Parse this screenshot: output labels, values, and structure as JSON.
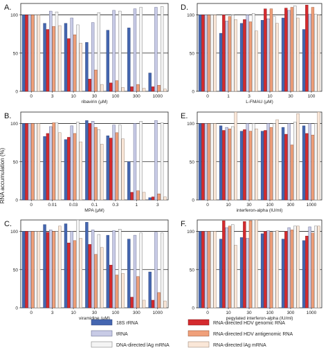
{
  "figure": {
    "ylabel": "RNA accumulation (%)",
    "yticks": [
      0,
      50,
      100
    ],
    "ylim": [
      0,
      115
    ]
  },
  "series": [
    {
      "name": "18S rRNA",
      "color": "#4466b0",
      "stroke": "#2a3f73"
    },
    {
      "name": "RNA-directed HDV genomic RNA",
      "color": "#d42a2e",
      "stroke": "#7a1416"
    },
    {
      "name": "tRNA",
      "color": "#c8cbe6",
      "stroke": "#555a80"
    },
    {
      "name": "RNA-directed HDV antigenomic RNA",
      "color": "#f0a07a",
      "stroke": "#8a4a2c"
    },
    {
      "name": "DNA-directed lAg mRNA",
      "color": "#f4f4f4",
      "stroke": "#6a6a6a"
    },
    {
      "name": "RNA-directed lAg mRNA",
      "color": "#fae7d8",
      "stroke": "#8c7564"
    }
  ],
  "chart_data": [
    {
      "type": "bar",
      "panel_label": "A.",
      "xlabel": "ribavirin (μM)",
      "categories": [
        "0",
        "3",
        "10",
        "30",
        "100",
        "300",
        "1000"
      ],
      "ylim": [
        0,
        115
      ],
      "yticks": [
        0,
        50,
        100
      ],
      "series": [
        {
          "name": "18S rRNA",
          "values": [
            100,
            89,
            89,
            64,
            80,
            83,
            24
          ]
        },
        {
          "name": "RNA-directed HDV genomic RNA",
          "values": [
            100,
            81,
            69,
            16,
            11,
            6,
            6
          ]
        },
        {
          "name": "tRNA",
          "values": [
            100,
            105,
            96,
            90,
            106,
            108,
            110
          ]
        },
        {
          "name": "RNA-directed HDV antigenomic RNA",
          "values": [
            100,
            85,
            74,
            28,
            14,
            9,
            8
          ]
        },
        {
          "name": "DNA-directed lAg mRNA",
          "values": [
            100,
            104,
            87,
            103,
            105,
            110,
            111
          ]
        },
        {
          "name": "RNA-directed lAg mRNA",
          "values": [
            100,
            86,
            63,
            9,
            5,
            4,
            3
          ]
        }
      ]
    },
    {
      "type": "bar",
      "panel_label": "D.",
      "xlabel": "L-FMAU (μM)",
      "categories": [
        "0",
        "1",
        "3",
        "10",
        "30",
        "100"
      ],
      "ylim": [
        0,
        115
      ],
      "yticks": [
        0,
        50,
        100
      ],
      "series": [
        {
          "name": "18S rRNA",
          "values": [
            100,
            76,
            89,
            93,
            96,
            81
          ]
        },
        {
          "name": "RNA-directed HDV genomic RNA",
          "values": [
            100,
            100,
            94,
            108,
            109,
            113
          ]
        },
        {
          "name": "tRNA",
          "values": [
            100,
            92,
            100,
            95,
            106,
            101
          ]
        },
        {
          "name": "RNA-directed HDV antigenomic RNA",
          "values": [
            100,
            98,
            91,
            108,
            110,
            110
          ]
        },
        {
          "name": "DNA-directed lAg mRNA",
          "values": [
            100,
            100,
            102,
            98,
            112,
            101
          ]
        },
        {
          "name": "RNA-directed lAg mRNA",
          "values": [
            100,
            94,
            79,
            89,
            96,
            100
          ]
        }
      ]
    },
    {
      "type": "bar",
      "panel_label": "B.",
      "xlabel": "MPA (μM)",
      "categories": [
        "0",
        "0.01",
        "0.03",
        "0.1",
        "0.3",
        "1",
        "3"
      ],
      "ylim": [
        0,
        115
      ],
      "yticks": [
        0,
        50,
        100
      ],
      "series": [
        {
          "name": "18S rRNA",
          "values": [
            100,
            83,
            79,
            104,
            84,
            50,
            3
          ]
        },
        {
          "name": "RNA-directed HDV genomic RNA",
          "values": [
            100,
            87,
            82,
            100,
            81,
            10,
            4
          ]
        },
        {
          "name": "tRNA",
          "values": [
            100,
            96,
            97,
            103,
            98,
            100,
            104
          ]
        },
        {
          "name": "RNA-directed HDV antigenomic RNA",
          "values": [
            100,
            101,
            87,
            95,
            88,
            12,
            8
          ]
        },
        {
          "name": "DNA-directed lAg mRNA",
          "values": [
            100,
            101,
            102,
            92,
            98,
            103,
            101
          ]
        },
        {
          "name": "RNA-directed lAg mRNA",
          "values": [
            100,
            88,
            76,
            73,
            80,
            10,
            4
          ]
        }
      ]
    },
    {
      "type": "bar",
      "panel_label": "E.",
      "xlabel": "interferon-alpha (IU/ml)",
      "categories": [
        "0",
        "10",
        "30",
        "100",
        "300",
        "1000"
      ],
      "ylim": [
        0,
        115
      ],
      "yticks": [
        0,
        50,
        100
      ],
      "series": [
        {
          "name": "18S rRNA",
          "values": [
            100,
            97,
            90,
            90,
            95,
            97
          ]
        },
        {
          "name": "RNA-directed HDV genomic RNA",
          "values": [
            100,
            91,
            92,
            91,
            86,
            87
          ]
        },
        {
          "name": "tRNA",
          "values": [
            100,
            95,
            100,
            100,
            100,
            100
          ]
        },
        {
          "name": "RNA-directed HDV antigenomic RNA",
          "values": [
            100,
            93,
            90,
            95,
            72,
            85
          ]
        },
        {
          "name": "DNA-directed lAg mRNA",
          "values": [
            100,
            96,
            100,
            100,
            102,
            100
          ]
        },
        {
          "name": "RNA-directed lAg mRNA",
          "values": [
            100,
            117,
            93,
            105,
            113,
            117
          ]
        }
      ]
    },
    {
      "type": "bar",
      "panel_label": "C.",
      "xlabel": "viramidine (μM)",
      "categories": [
        "0",
        "3",
        "10",
        "30",
        "100",
        "300",
        "1000"
      ],
      "ylim": [
        0,
        115
      ],
      "yticks": [
        0,
        50,
        100
      ],
      "series": [
        {
          "name": "18S rRNA",
          "values": [
            100,
            109,
            110,
            112,
            95,
            90,
            47
          ]
        },
        {
          "name": "RNA-directed HDV genomic RNA",
          "values": [
            100,
            99,
            85,
            83,
            56,
            14,
            10
          ]
        },
        {
          "name": "tRNA",
          "values": [
            100,
            102,
            100,
            102,
            101,
            95,
            99
          ]
        },
        {
          "name": "RNA-directed HDV antigenomic RNA",
          "values": [
            100,
            100,
            88,
            70,
            43,
            41,
            20
          ]
        },
        {
          "name": "DNA-directed lAg mRNA",
          "values": [
            100,
            100,
            115,
            96,
            103,
            98,
            98
          ]
        },
        {
          "name": "RNA-directed lAg mRNA",
          "values": [
            100,
            107,
            91,
            79,
            45,
            10,
            9
          ]
        }
      ]
    },
    {
      "type": "bar",
      "panel_label": "F.",
      "xlabel": "pegylated interferon-alpha (IU/ml)",
      "categories": [
        "0",
        "10",
        "30",
        "100",
        "300",
        "1000"
      ],
      "ylim": [
        0,
        115
      ],
      "yticks": [
        0,
        50,
        100
      ],
      "series": [
        {
          "name": "18S rRNA",
          "values": [
            100,
            90,
            92,
            97,
            90,
            88
          ]
        },
        {
          "name": "RNA-directed HDV genomic RNA",
          "values": [
            100,
            114,
            113,
            100,
            100,
            94
          ]
        },
        {
          "name": "tRNA",
          "values": [
            100,
            105,
            91,
            101,
            105,
            106
          ]
        },
        {
          "name": "RNA-directed HDV antigenomic RNA",
          "values": [
            100,
            107,
            114,
            99,
            102,
            98
          ]
        },
        {
          "name": "DNA-directed lAg mRNA",
          "values": [
            100,
            109,
            115,
            100,
            107,
            107
          ]
        },
        {
          "name": "RNA-directed lAg mRNA",
          "values": [
            100,
            82,
            115,
            101,
            107,
            107
          ]
        }
      ]
    }
  ]
}
